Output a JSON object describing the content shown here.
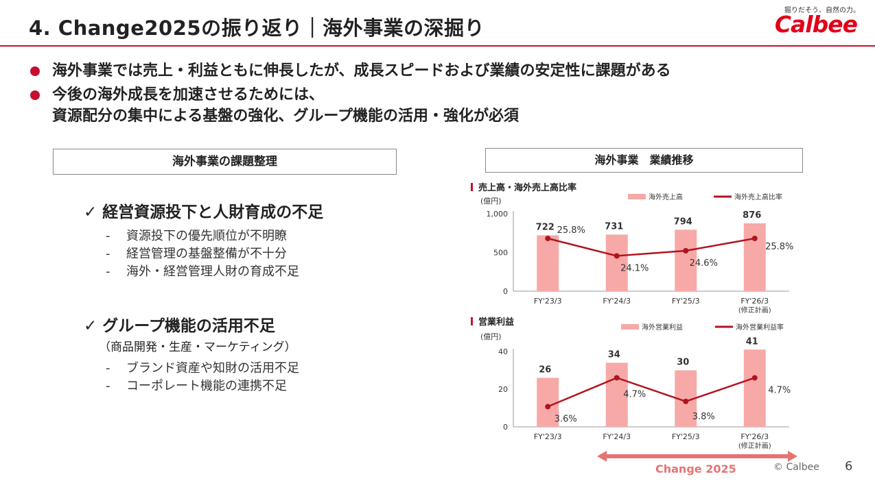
{
  "header": {
    "title": "4. Change2025の振り返り｜海外事業の深掘り",
    "logo_tagline": "掘りだそう、自然の力。",
    "logo_text": "Calbee"
  },
  "bullets": [
    {
      "lines": [
        "海外事業では売上・利益ともに伸長したが、成長スピードおよび業績の安定性に課題がある"
      ]
    },
    {
      "lines": [
        "今後の海外成長を加速させるためには、",
        "資源配分の集中による基盤の強化、グループ機能の活用・強化が必須"
      ]
    }
  ],
  "left_panel": {
    "heading": "海外事業の課題整理",
    "issues": [
      {
        "check": "✓",
        "title": "経営資源投下と人財育成の不足",
        "subtitle": "",
        "items": [
          "資源投下の優先順位が不明瞭",
          "経営管理の基盤整備が不十分",
          "海外・経営管理人財の育成不足"
        ]
      },
      {
        "check": "✓",
        "title": "グループ機能の活用不足",
        "subtitle": "（商品開発・生産・マーケティング）",
        "items": [
          "ブランド資産や知財の活用不足",
          "コーポレート機能の連携不足"
        ]
      }
    ]
  },
  "right_panel": {
    "heading": "海外事業　業績推移"
  },
  "chart_data": [
    {
      "type": "bar",
      "title": "売上高・海外売上高比率",
      "unit": "(億円)",
      "categories": [
        "FY'23/3",
        "FY'24/3",
        "FY'25/3",
        "FY'26/3"
      ],
      "category_notes": [
        "",
        "",
        "",
        "(修正計画)"
      ],
      "yticks": [
        "0",
        "500",
        "1,000"
      ],
      "ylim": [
        0,
        1000
      ],
      "series": [
        {
          "name": "海外売上高",
          "type": "bar",
          "values": [
            722,
            731,
            794,
            876
          ],
          "labels": [
            "722",
            "731",
            "794",
            "876"
          ],
          "color": "#f7a9a8"
        },
        {
          "name": "海外売上高比率",
          "type": "line",
          "values": [
            25.8,
            24.1,
            24.6,
            25.8
          ],
          "labels": [
            "25.8%",
            "24.1%",
            "24.6%",
            "25.8%"
          ],
          "color": "#b0141f"
        }
      ]
    },
    {
      "type": "bar",
      "title": "営業利益",
      "unit": "(億円)",
      "categories": [
        "FY'23/3",
        "FY'24/3",
        "FY'25/3",
        "FY'26/3"
      ],
      "category_notes": [
        "",
        "",
        "",
        "(修正計画)"
      ],
      "yticks": [
        "0",
        "20",
        "40"
      ],
      "ylim": [
        0,
        40
      ],
      "series": [
        {
          "name": "海外営業利益",
          "type": "bar",
          "values": [
            26,
            34,
            30,
            41
          ],
          "labels": [
            "26",
            "34",
            "30",
            "41"
          ],
          "color": "#f7a9a8"
        },
        {
          "name": "海外営業利益率",
          "type": "line",
          "values": [
            3.6,
            4.7,
            3.8,
            4.7
          ],
          "labels": [
            "3.6%",
            "4.7%",
            "3.8%",
            "4.7%"
          ],
          "color": "#b0141f"
        }
      ]
    }
  ],
  "footer": {
    "change_label": "Change 2025",
    "copyright": "© Calbee",
    "page_number": "6"
  }
}
